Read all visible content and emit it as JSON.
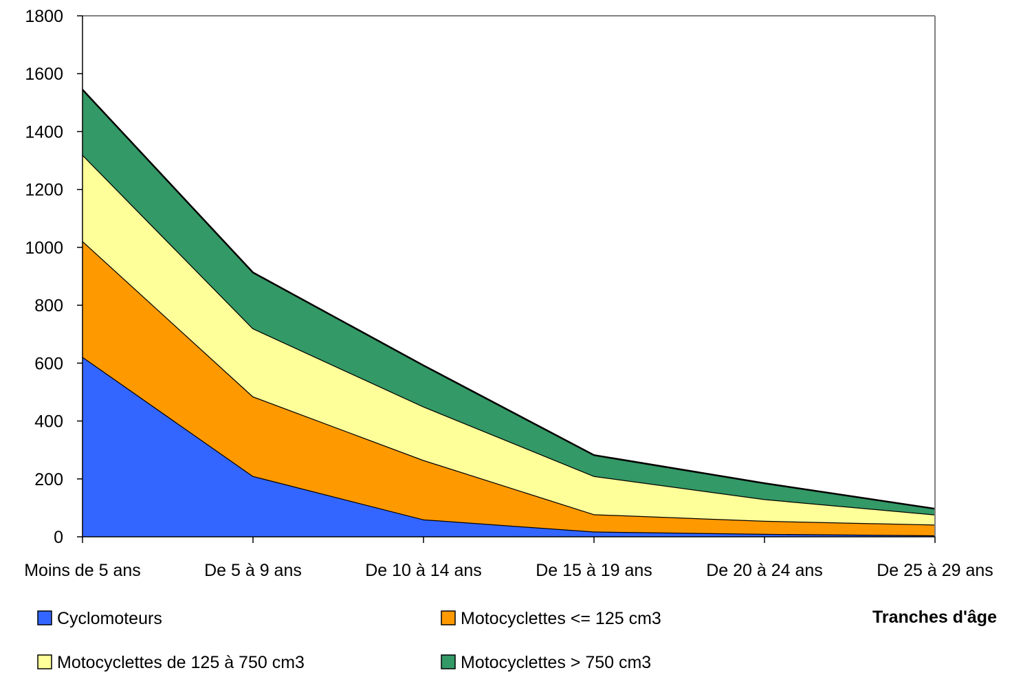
{
  "chart_data": {
    "type": "area",
    "stacked": true,
    "categories": [
      "Moins de 5 ans",
      "De 5 à 9 ans",
      "De 10 à 14 ans",
      "De 15 à 19 ans",
      "De 20 à 24 ans",
      "De 25 à 29 ans"
    ],
    "series": [
      {
        "name": "Cyclomoteurs",
        "color": "#3366FF",
        "values": [
          622,
          210,
          60,
          18,
          10,
          5
        ]
      },
      {
        "name": "Motocyclettes <= 125 cm3",
        "color": "#FF9900",
        "values": [
          400,
          275,
          205,
          60,
          45,
          37
        ]
      },
      {
        "name": "Motocyclettes de 125 à 750 cm3",
        "color": "#FFFF99",
        "values": [
          298,
          235,
          185,
          132,
          75,
          35
        ]
      },
      {
        "name": "Motocyclettes > 750 cm3",
        "color": "#339966",
        "values": [
          225,
          193,
          142,
          72,
          55,
          20
        ]
      }
    ],
    "xlabel": "Tranches d'âge",
    "ylabel": "",
    "ylim": [
      0,
      1800
    ],
    "yticks": [
      0,
      200,
      400,
      600,
      800,
      1000,
      1200,
      1400,
      1600,
      1800
    ],
    "grid": false,
    "legend_position": "bottom"
  }
}
